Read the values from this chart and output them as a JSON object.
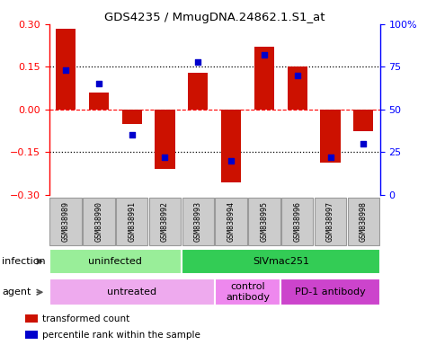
{
  "title": "GDS4235 / MmugDNA.24862.1.S1_at",
  "samples": [
    "GSM838989",
    "GSM838990",
    "GSM838991",
    "GSM838992",
    "GSM838993",
    "GSM838994",
    "GSM838995",
    "GSM838996",
    "GSM838997",
    "GSM838998"
  ],
  "transformed_count": [
    0.285,
    0.06,
    -0.05,
    -0.21,
    0.13,
    -0.255,
    0.22,
    0.15,
    -0.185,
    -0.075
  ],
  "percentile_rank": [
    73,
    65,
    35,
    22,
    78,
    20,
    82,
    70,
    22,
    30
  ],
  "ylim_left": [
    -0.3,
    0.3
  ],
  "ylim_right": [
    0,
    100
  ],
  "yticks_left": [
    -0.3,
    -0.15,
    0,
    0.15,
    0.3
  ],
  "yticks_right": [
    0,
    25,
    50,
    75,
    100
  ],
  "hlines_dotted": [
    -0.15,
    0.15
  ],
  "hline_dashed": 0,
  "bar_color": "#CC1100",
  "dot_color": "#0000CC",
  "bar_width": 0.6,
  "infection_groups": [
    {
      "label": "uninfected",
      "start": 0,
      "end": 3,
      "color": "#99EE99"
    },
    {
      "label": "SIVmac251",
      "start": 4,
      "end": 9,
      "color": "#33CC55"
    }
  ],
  "agent_groups": [
    {
      "label": "untreated",
      "start": 0,
      "end": 4,
      "color": "#EEAAEE"
    },
    {
      "label": "control\nantibody",
      "start": 5,
      "end": 6,
      "color": "#EE88EE"
    },
    {
      "label": "PD-1 antibody",
      "start": 7,
      "end": 9,
      "color": "#CC44CC"
    }
  ],
  "legend_items": [
    {
      "label": "transformed count",
      "color": "#CC1100"
    },
    {
      "label": "percentile rank within the sample",
      "color": "#0000CC"
    }
  ],
  "sample_bg_color": "#CCCCCC",
  "sample_border_color": "#999999"
}
